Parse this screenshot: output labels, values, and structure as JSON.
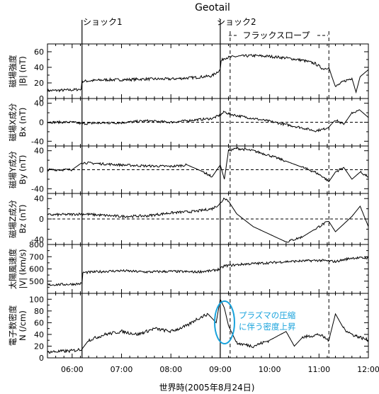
{
  "chart_data": {
    "type": "line",
    "title": "Geotail",
    "xlabel": "世界時(2005年8月24日)",
    "x_range": [
      "05:30",
      "12:00"
    ],
    "x_ticks": [
      "06:00",
      "07:00",
      "08:00",
      "09:00",
      "10:00",
      "11:00",
      "12:00"
    ],
    "events": [
      {
        "label": "ショック1",
        "time": "06:12"
      },
      {
        "label": "ショック2",
        "time": "09:00"
      }
    ],
    "interval": {
      "label": "フラックスロープ",
      "start": "09:12",
      "end": "11:12"
    },
    "dashed_lines": [
      "09:12",
      "11:12"
    ],
    "annotation": {
      "lines": [
        "プラズマの圧縮",
        "に伴う密度上昇"
      ],
      "color": "#1aa3dc",
      "time": "09:04"
    },
    "panels": [
      {
        "id": "b-total",
        "ylabel": [
          "磁場強度",
          "|B| (nT)"
        ],
        "ylim": [
          0,
          70
        ],
        "yticks": [
          "60",
          "40",
          "20",
          "0"
        ],
        "zero_line": false,
        "series": [
          {
            "line": [
              [
                "05:30",
                10
              ],
              [
                "06:00",
                11
              ],
              [
                "06:11",
                12
              ],
              [
                "06:12",
                22
              ],
              [
                "06:40",
                24
              ],
              [
                "07:00",
                24
              ],
              [
                "07:30",
                25
              ],
              [
                "08:00",
                25
              ],
              [
                "08:30",
                27
              ],
              [
                "08:50",
                29
              ],
              [
                "09:00",
                37
              ],
              [
                "09:01",
                48
              ],
              [
                "09:05",
                52
              ],
              [
                "09:12",
                53
              ],
              [
                "09:20",
                54
              ],
              [
                "09:40",
                55
              ],
              [
                "10:00",
                54
              ],
              [
                "10:20",
                52
              ],
              [
                "10:40",
                49
              ],
              [
                "10:55",
                45
              ],
              [
                "11:05",
                38
              ],
              [
                "11:12",
                40
              ],
              [
                "11:15",
                30
              ],
              [
                "11:20",
                15
              ],
              [
                "11:30",
                22
              ],
              [
                "11:40",
                26
              ],
              [
                "11:45",
                8
              ],
              [
                "11:50",
                28
              ],
              [
                "12:00",
                37
              ]
            ]
          }
        ]
      },
      {
        "id": "bx",
        "ylabel": [
          "磁場X成分",
          "Bx (nT)"
        ],
        "ylim": [
          -50,
          50
        ],
        "yticks": [
          "40",
          "0",
          "-40"
        ],
        "zero_line": true,
        "series": [
          {
            "line": [
              [
                "05:30",
                0
              ],
              [
                "06:00",
                0
              ],
              [
                "06:12",
                -3
              ],
              [
                "06:30",
                -2
              ],
              [
                "07:00",
                -1
              ],
              [
                "07:30",
                3
              ],
              [
                "08:00",
                0
              ],
              [
                "08:30",
                5
              ],
              [
                "08:50",
                8
              ],
              [
                "09:00",
                15
              ],
              [
                "09:05",
                22
              ],
              [
                "09:10",
                18
              ],
              [
                "09:20",
                14
              ],
              [
                "09:40",
                8
              ],
              [
                "10:00",
                2
              ],
              [
                "10:20",
                -5
              ],
              [
                "10:40",
                -12
              ],
              [
                "10:55",
                -18
              ],
              [
                "11:05",
                -15
              ],
              [
                "11:12",
                -10
              ],
              [
                "11:20",
                5
              ],
              [
                "11:30",
                -5
              ],
              [
                "11:40",
                20
              ],
              [
                "11:50",
                25
              ],
              [
                "12:00",
                10
              ]
            ]
          }
        ]
      },
      {
        "id": "by",
        "ylabel": [
          "磁場Y成分",
          "By (nT)"
        ],
        "ylim": [
          -50,
          50
        ],
        "yticks": [
          "40",
          "0",
          "-40"
        ],
        "zero_line": true,
        "series": [
          {
            "line": [
              [
                "05:30",
                0
              ],
              [
                "06:00",
                0
              ],
              [
                "06:12",
                15
              ],
              [
                "06:40",
                12
              ],
              [
                "07:00",
                10
              ],
              [
                "07:30",
                8
              ],
              [
                "08:00",
                7
              ],
              [
                "08:20",
                10
              ],
              [
                "08:40",
                -5
              ],
              [
                "08:50",
                -15
              ],
              [
                "09:00",
                10
              ],
              [
                "09:05",
                -20
              ],
              [
                "09:10",
                40
              ],
              [
                "09:20",
                45
              ],
              [
                "09:40",
                40
              ],
              [
                "10:00",
                30
              ],
              [
                "10:20",
                18
              ],
              [
                "10:40",
                5
              ],
              [
                "10:55",
                -5
              ],
              [
                "11:05",
                -15
              ],
              [
                "11:12",
                -25
              ],
              [
                "11:20",
                -5
              ],
              [
                "11:30",
                5
              ],
              [
                "11:40",
                -20
              ],
              [
                "11:50",
                -5
              ],
              [
                "12:00",
                -15
              ]
            ]
          }
        ]
      },
      {
        "id": "bz",
        "ylabel": [
          "磁場Z成分",
          "Bz (nT)"
        ],
        "ylim": [
          -50,
          50
        ],
        "yticks": [
          "40",
          "0",
          "-40"
        ],
        "zero_line": true,
        "series": [
          {
            "line": [
              [
                "05:30",
                8
              ],
              [
                "06:00",
                9
              ],
              [
                "06:12",
                10
              ],
              [
                "06:30",
                8
              ],
              [
                "07:00",
                5
              ],
              [
                "07:30",
                6
              ],
              [
                "08:00",
                12
              ],
              [
                "08:30",
                15
              ],
              [
                "08:50",
                20
              ],
              [
                "09:00",
                30
              ],
              [
                "09:05",
                42
              ],
              [
                "09:10",
                35
              ],
              [
                "09:20",
                10
              ],
              [
                "09:40",
                -15
              ],
              [
                "10:00",
                -30
              ],
              [
                "10:20",
                -45
              ],
              [
                "10:40",
                -35
              ],
              [
                "10:55",
                -20
              ],
              [
                "11:05",
                -10
              ],
              [
                "11:12",
                -5
              ],
              [
                "11:20",
                -25
              ],
              [
                "11:30",
                -10
              ],
              [
                "11:40",
                5
              ],
              [
                "11:50",
                25
              ],
              [
                "12:00",
                -15
              ]
            ]
          }
        ]
      },
      {
        "id": "v",
        "ylabel": [
          "太陽風速度",
          "|V| (km/s)"
        ],
        "ylim": [
          400,
          800
        ],
        "yticks": [
          "800",
          "700",
          "600",
          "500"
        ],
        "zero_line": false,
        "series": [
          {
            "line": [
              [
                "05:30",
                470
              ],
              [
                "06:00",
                475
              ],
              [
                "06:12",
                480
              ],
              [
                "06:13",
                570
              ],
              [
                "06:40",
                580
              ],
              [
                "07:00",
                585
              ],
              [
                "07:30",
                575
              ],
              [
                "08:00",
                580
              ],
              [
                "08:30",
                575
              ],
              [
                "08:50",
                585
              ],
              [
                "09:00",
                600
              ],
              [
                "09:05",
                625
              ],
              [
                "09:30",
                640
              ],
              [
                "10:00",
                650
              ],
              [
                "10:20",
                660
              ],
              [
                "10:40",
                665
              ],
              [
                "11:00",
                670
              ],
              [
                "11:12",
                665
              ],
              [
                "11:20",
                660
              ],
              [
                "11:40",
                690
              ],
              [
                "12:00",
                690
              ]
            ]
          }
        ]
      },
      {
        "id": "n",
        "ylabel": [
          "電子数密度",
          "N (/cm)"
        ],
        "ylim": [
          0,
          110
        ],
        "yticks": [
          "100",
          "80",
          "60",
          "40",
          "20",
          "0"
        ],
        "zero_line": false,
        "series": [
          {
            "line": [
              [
                "05:30",
                10
              ],
              [
                "06:00",
                12
              ],
              [
                "06:12",
                15
              ],
              [
                "06:20",
                30
              ],
              [
                "06:40",
                40
              ],
              [
                "07:00",
                45
              ],
              [
                "07:20",
                40
              ],
              [
                "07:40",
                50
              ],
              [
                "08:00",
                45
              ],
              [
                "08:20",
                55
              ],
              [
                "08:30",
                65
              ],
              [
                "08:45",
                75
              ],
              [
                "08:55",
                60
              ],
              [
                "09:00",
                100
              ],
              [
                "09:05",
                85
              ],
              [
                "09:10",
                55
              ],
              [
                "09:20",
                25
              ],
              [
                "09:40",
                20
              ],
              [
                "10:00",
                30
              ],
              [
                "10:20",
                45
              ],
              [
                "10:30",
                20
              ],
              [
                "10:40",
                35
              ],
              [
                "11:00",
                40
              ],
              [
                "11:12",
                30
              ],
              [
                "11:20",
                75
              ],
              [
                "11:30",
                50
              ],
              [
                "11:40",
                40
              ],
              [
                "11:50",
                35
              ],
              [
                "12:00",
                30
              ]
            ]
          }
        ]
      }
    ]
  }
}
